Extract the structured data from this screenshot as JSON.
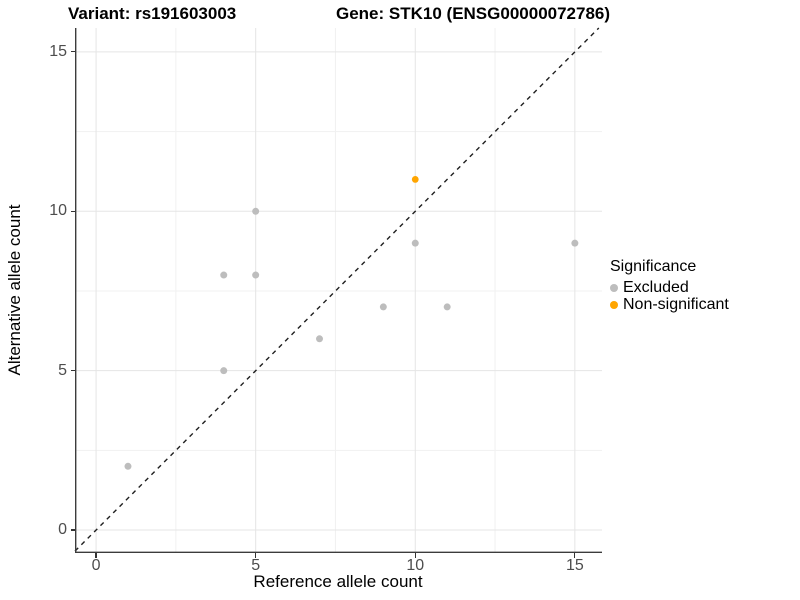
{
  "header": {
    "variant_title": "Variant: rs191603003",
    "gene_title": "Gene: STK10 (ENSG00000072786)"
  },
  "axes": {
    "x_label": "Reference allele count",
    "y_label": "Alternative allele count"
  },
  "legend": {
    "title": "Significance",
    "items": [
      {
        "label": "Excluded",
        "color": "#bdbdbd"
      },
      {
        "label": "Non-significant",
        "color": "#ffa500"
      }
    ]
  },
  "chart_data": {
    "type": "scatter",
    "title": "Variant: rs191603003    Gene: STK10 (ENSG00000072786)",
    "xlabel": "Reference allele count",
    "ylabel": "Alternative allele count",
    "xlim": [
      -0.66,
      15.85
    ],
    "ylim": [
      -0.72,
      15.75
    ],
    "x_major_ticks": [
      0,
      5,
      10,
      15
    ],
    "y_major_ticks": [
      0,
      5,
      10,
      15
    ],
    "x_minor_ticks": [
      2.5,
      7.5,
      12.5
    ],
    "y_minor_ticks": [
      2.5,
      7.5,
      12.5
    ],
    "grid": true,
    "legend_position": "right",
    "series": [
      {
        "name": "Excluded",
        "color": "#bdbdbd",
        "size": 3.5,
        "points": [
          [
            1,
            2
          ],
          [
            4,
            5
          ],
          [
            4,
            8
          ],
          [
            5,
            8
          ],
          [
            5,
            10
          ],
          [
            7,
            6
          ],
          [
            9,
            7
          ],
          [
            10,
            9
          ],
          [
            11,
            7
          ],
          [
            15,
            9
          ]
        ]
      },
      {
        "name": "Non-significant",
        "color": "#ffa500",
        "size": 3.4,
        "points": [
          [
            10,
            11
          ]
        ]
      }
    ],
    "identity_line": {
      "slope": 1,
      "intercept": 0,
      "linetype": "dashed",
      "color": "#1f1f1f"
    }
  },
  "theme": {
    "grid_major": "#e5e5e5",
    "grid_minor": "#f1f1f1",
    "axis_line": "#3c3c3c",
    "tick_color": "#333333"
  }
}
